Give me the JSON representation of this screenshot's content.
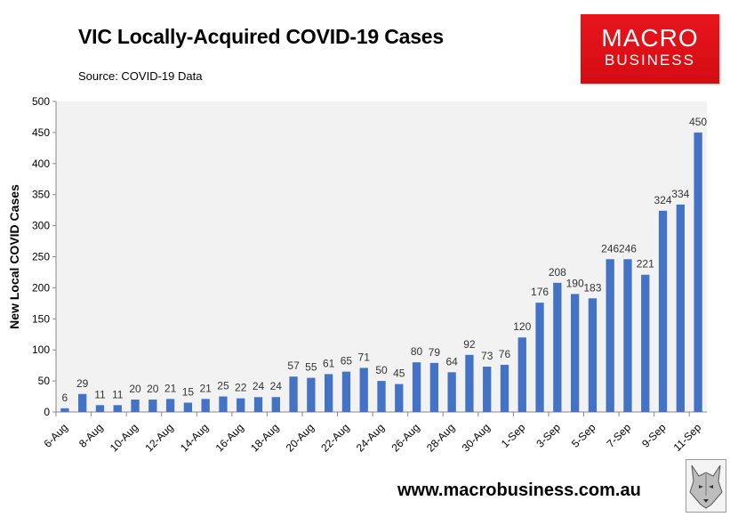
{
  "title": "VIC Locally-Acquired COVID-19 Cases",
  "source": "Source: COVID-19 Data",
  "logo": {
    "line1": "MACRO",
    "line2": "BUSINESS"
  },
  "footer": "www.macrobusiness.com.au",
  "colors": {
    "bar": "#4472c4",
    "plot_bg": "#f2f2f2",
    "logo_red": "#e8141b"
  },
  "chart_data": {
    "type": "bar",
    "title": "VIC Locally-Acquired COVID-19 Cases",
    "xlabel": "",
    "ylabel": "New Local COVID Cases",
    "ylim": [
      0,
      500
    ],
    "yticks": [
      0,
      50,
      100,
      150,
      200,
      250,
      300,
      350,
      400,
      450,
      500
    ],
    "grid": false,
    "categories": [
      "6-Aug",
      "7-Aug",
      "8-Aug",
      "9-Aug",
      "10-Aug",
      "11-Aug",
      "12-Aug",
      "13-Aug",
      "14-Aug",
      "15-Aug",
      "16-Aug",
      "17-Aug",
      "18-Aug",
      "19-Aug",
      "20-Aug",
      "21-Aug",
      "22-Aug",
      "23-Aug",
      "24-Aug",
      "25-Aug",
      "26-Aug",
      "27-Aug",
      "28-Aug",
      "29-Aug",
      "30-Aug",
      "31-Aug",
      "1-Sep",
      "2-Sep",
      "3-Sep",
      "4-Sep",
      "5-Sep",
      "6-Sep",
      "7-Sep",
      "8-Sep",
      "9-Sep",
      "10-Sep",
      "11-Sep"
    ],
    "x_tick_labels": [
      "6-Aug",
      "8-Aug",
      "10-Aug",
      "12-Aug",
      "14-Aug",
      "16-Aug",
      "18-Aug",
      "20-Aug",
      "22-Aug",
      "24-Aug",
      "26-Aug",
      "28-Aug",
      "30-Aug",
      "1-Sep",
      "3-Sep",
      "5-Sep",
      "7-Sep",
      "9-Sep",
      "11-Sep"
    ],
    "values": [
      6,
      29,
      11,
      11,
      20,
      20,
      21,
      15,
      21,
      25,
      22,
      24,
      24,
      57,
      55,
      61,
      65,
      71,
      50,
      45,
      80,
      79,
      64,
      92,
      73,
      76,
      120,
      176,
      208,
      190,
      183,
      246,
      246,
      221,
      324,
      334,
      450
    ]
  }
}
